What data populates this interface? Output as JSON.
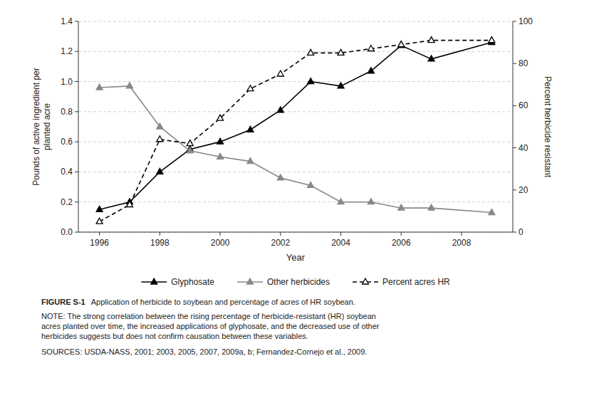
{
  "chart_data": {
    "type": "line",
    "x": [
      1996,
      1997,
      1998,
      1999,
      2000,
      2001,
      2002,
      2003,
      2004,
      2005,
      2006,
      2007,
      2009
    ],
    "series": [
      {
        "name": "Glyphosate",
        "color": "#000000",
        "marker": "triangle",
        "line_style": "solid",
        "values": [
          0.15,
          0.2,
          0.4,
          0.55,
          0.6,
          0.68,
          0.81,
          1.0,
          0.97,
          1.07,
          1.24,
          1.15,
          1.26
        ]
      },
      {
        "name": "Other herbicides",
        "color": "#888888",
        "marker": "triangle",
        "line_style": "solid",
        "values": [
          0.96,
          0.97,
          0.7,
          0.54,
          0.5,
          0.47,
          0.36,
          0.31,
          0.2,
          0.2,
          0.16,
          0.16,
          0.13
        ]
      },
      {
        "name": "Percent acres HR",
        "color": "#000000",
        "marker": "triangle-open",
        "line_style": "dashed",
        "axis": "y2",
        "values": [
          5,
          13,
          44,
          42,
          54,
          68,
          75,
          85,
          85,
          87,
          89,
          91,
          91
        ]
      }
    ],
    "x_label": "Year",
    "y_label": "Pounds of active ingredient per\nplanted acre",
    "y2_label": "Percent herbicide resistant",
    "xlim": [
      1995.3,
      2009.7
    ],
    "xticks": [
      1996,
      1998,
      2000,
      2002,
      2004,
      2006,
      2008
    ],
    "ylim": [
      0,
      1.4
    ],
    "yticks": [
      {
        "value": 0,
        "label": "0.0"
      },
      0.2,
      0.4,
      0.6,
      0.8,
      {
        "value": 1.0,
        "label": "1.0"
      },
      1.2,
      1.4
    ],
    "y2lim": [
      0,
      100
    ],
    "y2ticks": [
      0,
      20,
      40,
      60,
      80,
      100
    ],
    "grid": true,
    "legend": "bottom",
    "annotations": [
      "FIGURE S-1",
      "Application of herbicide to soybean and percentage of acres of HR soybean.",
      "NOTE: The strong correlation between the rising percentage of herbicide-resistant (HR) soybean\nacres planted over time, the increased applications of glyphosate, and the decreased use of other\nherbicides suggests but does not confirm causation between these variables.",
      "SOURCES: USDA-NASS, 2001; 2003, 2005, 2007, 2009a, b; Fernandez-Cornejo et al., 2009."
    ]
  }
}
